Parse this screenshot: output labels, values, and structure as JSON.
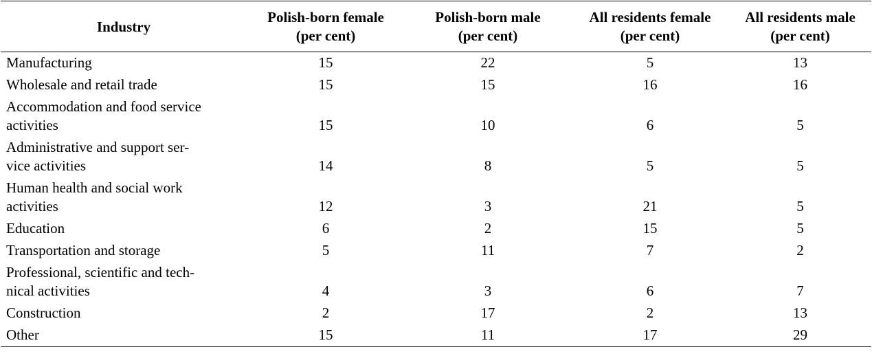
{
  "table": {
    "headers": [
      [
        "Industry"
      ],
      [
        "Polish-born female",
        "(per cent)"
      ],
      [
        "Polish-born male",
        "(per cent)"
      ],
      [
        "All residents female",
        "(per cent)"
      ],
      [
        "All residents male",
        "(per cent)"
      ]
    ],
    "rows": [
      {
        "label": [
          "Manufacturing"
        ],
        "values": [
          "15",
          "22",
          "5",
          "13"
        ]
      },
      {
        "label": [
          "Wholesale and retail trade"
        ],
        "values": [
          "15",
          "15",
          "16",
          "16"
        ]
      },
      {
        "label": [
          "Accommodation and food service",
          "activities"
        ],
        "values": [
          "15",
          "10",
          "6",
          "5"
        ]
      },
      {
        "label": [
          "Administrative and support ser-",
          "vice activities"
        ],
        "values": [
          "14",
          "8",
          "5",
          "5"
        ]
      },
      {
        "label": [
          "Human health and social work",
          "activities"
        ],
        "values": [
          "12",
          "3",
          "21",
          "5"
        ]
      },
      {
        "label": [
          "Education"
        ],
        "values": [
          "6",
          "2",
          "15",
          "5"
        ]
      },
      {
        "label": [
          "Transportation and storage"
        ],
        "values": [
          "5",
          "11",
          "7",
          "2"
        ]
      },
      {
        "label": [
          "Professional, scientific and tech-",
          "nical activities"
        ],
        "values": [
          "4",
          "3",
          "6",
          "7"
        ]
      },
      {
        "label": [
          "Construction"
        ],
        "values": [
          "2",
          "17",
          "2",
          "13"
        ]
      },
      {
        "label": [
          "Other"
        ],
        "values": [
          "15",
          "11",
          "17",
          "29"
        ]
      }
    ]
  }
}
